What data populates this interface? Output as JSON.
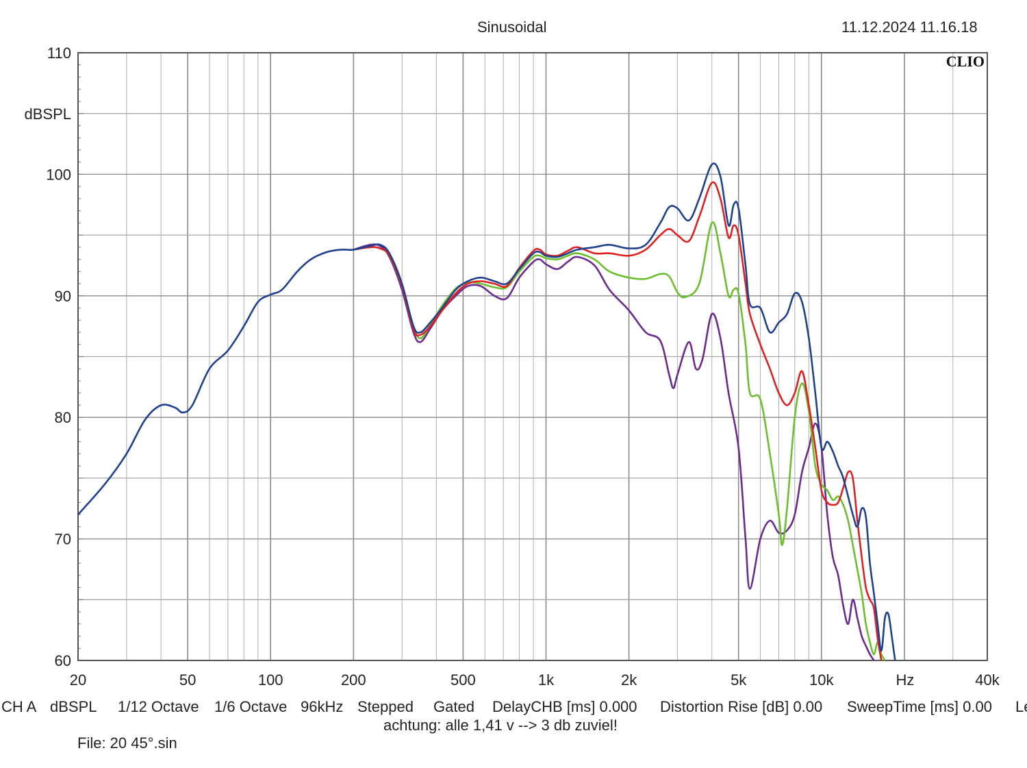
{
  "header": {
    "title": "Sinusoidal",
    "datetime": "11.12.2024 11.16.18",
    "brand": "CLIO"
  },
  "footer": {
    "settings": [
      "CH A",
      "dBSPL",
      "1/12 Octave",
      "1/6 Octave",
      "96kHz",
      "Stepped",
      "Gated",
      "DelayCHB [ms] 0.000",
      "Distortion Rise [dB] 0.00",
      "SweepTime [ms] 0.00",
      "Le"
    ],
    "note": "achtung: alle 1,41 v --> 3 db zuviel!",
    "file": "File: 20 45°.sin"
  },
  "chart_data": {
    "type": "line",
    "title": "Sinusoidal",
    "xlabel": "Hz",
    "ylabel": "dBSPL",
    "x_scale": "log",
    "xlim": [
      20,
      40000
    ],
    "ylim": [
      60,
      110
    ],
    "grid": true,
    "x_tick_labels": [
      {
        "value": 20,
        "label": "20"
      },
      {
        "value": 50,
        "label": "50"
      },
      {
        "value": 100,
        "label": "100"
      },
      {
        "value": 200,
        "label": "200"
      },
      {
        "value": 500,
        "label": "500"
      },
      {
        "value": 1000,
        "label": "1k"
      },
      {
        "value": 2000,
        "label": "2k"
      },
      {
        "value": 5000,
        "label": "5k"
      },
      {
        "value": 10000,
        "label": "10k"
      },
      {
        "value": 40000,
        "label": "40k"
      }
    ],
    "y_tick_labels": [
      {
        "value": 110,
        "label": "110"
      },
      {
        "value": 100,
        "label": "100"
      },
      {
        "value": 90,
        "label": "90"
      },
      {
        "value": 80,
        "label": "80"
      },
      {
        "value": 70,
        "label": "70"
      },
      {
        "value": 60,
        "label": "60"
      }
    ],
    "series": [
      {
        "color": "#1f3f8f",
        "points": [
          [
            20,
            72.0
          ],
          [
            25,
            74.5
          ],
          [
            30,
            77.0
          ],
          [
            35,
            79.8
          ],
          [
            40,
            81.0
          ],
          [
            45,
            80.8
          ],
          [
            48,
            80.4
          ],
          [
            52,
            81.0
          ],
          [
            60,
            84.0
          ],
          [
            70,
            85.5
          ],
          [
            80,
            87.5
          ],
          [
            90,
            89.5
          ],
          [
            100,
            90.1
          ],
          [
            110,
            90.5
          ],
          [
            125,
            92.0
          ],
          [
            140,
            93.0
          ],
          [
            160,
            93.6
          ],
          [
            180,
            93.8
          ],
          [
            200,
            93.8
          ],
          [
            230,
            94.1
          ],
          [
            250,
            94.2
          ],
          [
            270,
            93.5
          ],
          [
            300,
            91.0
          ],
          [
            330,
            87.5
          ],
          [
            350,
            87.0
          ],
          [
            380,
            87.8
          ],
          [
            420,
            89.0
          ],
          [
            470,
            90.5
          ],
          [
            520,
            91.2
          ],
          [
            580,
            91.5
          ],
          [
            650,
            91.2
          ],
          [
            720,
            91.0
          ],
          [
            800,
            92.2
          ],
          [
            900,
            93.5
          ],
          [
            950,
            93.6
          ],
          [
            1000,
            93.3
          ],
          [
            1100,
            93.2
          ],
          [
            1200,
            93.5
          ],
          [
            1300,
            93.8
          ],
          [
            1500,
            94.0
          ],
          [
            1700,
            94.2
          ],
          [
            2000,
            93.9
          ],
          [
            2300,
            94.2
          ],
          [
            2600,
            96.0
          ],
          [
            2800,
            97.3
          ],
          [
            3000,
            97.2
          ],
          [
            3300,
            96.2
          ],
          [
            3600,
            98.0
          ],
          [
            4000,
            100.8
          ],
          [
            4300,
            99.8
          ],
          [
            4600,
            95.8
          ],
          [
            4800,
            97.5
          ],
          [
            5000,
            97.2
          ],
          [
            5300,
            92.5
          ],
          [
            5500,
            89.3
          ],
          [
            6000,
            89.0
          ],
          [
            6500,
            87.0
          ],
          [
            7000,
            87.8
          ],
          [
            7500,
            88.5
          ],
          [
            8000,
            90.2
          ],
          [
            8500,
            89.5
          ],
          [
            9000,
            86.5
          ],
          [
            9500,
            82.0
          ],
          [
            10000,
            77.5
          ],
          [
            10500,
            78.0
          ],
          [
            11000,
            77.2
          ],
          [
            11500,
            76.0
          ],
          [
            12000,
            75.0
          ],
          [
            13000,
            72.0
          ],
          [
            13500,
            71.0
          ],
          [
            14000,
            72.5
          ],
          [
            14500,
            71.8
          ],
          [
            15000,
            68.0
          ],
          [
            15500,
            65.5
          ],
          [
            16000,
            63.0
          ],
          [
            16500,
            60.8
          ],
          [
            17000,
            63.5
          ],
          [
            17500,
            63.8
          ],
          [
            18000,
            62.0
          ],
          [
            18500,
            60.0
          ]
        ]
      },
      {
        "color": "#e02020",
        "points": [
          [
            200,
            93.8
          ],
          [
            230,
            94.0
          ],
          [
            250,
            93.9
          ],
          [
            270,
            93.3
          ],
          [
            300,
            90.8
          ],
          [
            330,
            87.2
          ],
          [
            350,
            86.8
          ],
          [
            380,
            87.5
          ],
          [
            420,
            88.8
          ],
          [
            470,
            90.2
          ],
          [
            520,
            91.0
          ],
          [
            580,
            91.2
          ],
          [
            650,
            91.0
          ],
          [
            720,
            90.8
          ],
          [
            800,
            92.3
          ],
          [
            900,
            93.7
          ],
          [
            950,
            93.8
          ],
          [
            1000,
            93.4
          ],
          [
            1100,
            93.3
          ],
          [
            1200,
            93.7
          ],
          [
            1300,
            94.0
          ],
          [
            1500,
            93.5
          ],
          [
            1700,
            93.5
          ],
          [
            2000,
            93.3
          ],
          [
            2300,
            93.8
          ],
          [
            2600,
            95.0
          ],
          [
            2800,
            95.5
          ],
          [
            3000,
            95.0
          ],
          [
            3300,
            94.5
          ],
          [
            3600,
            96.5
          ],
          [
            4000,
            99.3
          ],
          [
            4300,
            98.0
          ],
          [
            4600,
            94.8
          ],
          [
            4800,
            95.8
          ],
          [
            5000,
            95.0
          ],
          [
            5300,
            91.0
          ],
          [
            5500,
            88.5
          ],
          [
            6000,
            86.0
          ],
          [
            6500,
            84.0
          ],
          [
            7000,
            82.0
          ],
          [
            7500,
            81.0
          ],
          [
            8000,
            82.0
          ],
          [
            8500,
            83.8
          ],
          [
            9000,
            81.0
          ],
          [
            9500,
            77.5
          ],
          [
            10000,
            74.0
          ],
          [
            10500,
            73.0
          ],
          [
            11000,
            72.8
          ],
          [
            11500,
            73.0
          ],
          [
            12000,
            74.2
          ],
          [
            12500,
            75.5
          ],
          [
            13000,
            75.0
          ],
          [
            13500,
            71.5
          ],
          [
            14000,
            68.5
          ],
          [
            14500,
            66.0
          ],
          [
            15000,
            65.0
          ],
          [
            15500,
            64.3
          ],
          [
            16000,
            61.8
          ],
          [
            16500,
            60.0
          ]
        ]
      },
      {
        "color": "#6abf2a",
        "points": [
          [
            200,
            93.8
          ],
          [
            230,
            94.0
          ],
          [
            250,
            93.9
          ],
          [
            270,
            93.3
          ],
          [
            300,
            90.8
          ],
          [
            330,
            87.5
          ],
          [
            350,
            86.5
          ],
          [
            380,
            87.6
          ],
          [
            420,
            89.2
          ],
          [
            470,
            90.6
          ],
          [
            520,
            91.1
          ],
          [
            580,
            91.0
          ],
          [
            650,
            90.7
          ],
          [
            720,
            90.7
          ],
          [
            800,
            92.0
          ],
          [
            900,
            93.2
          ],
          [
            950,
            93.3
          ],
          [
            1000,
            93.1
          ],
          [
            1100,
            93.0
          ],
          [
            1200,
            93.3
          ],
          [
            1300,
            93.5
          ],
          [
            1500,
            93.0
          ],
          [
            1700,
            92.0
          ],
          [
            2000,
            91.5
          ],
          [
            2300,
            91.4
          ],
          [
            2600,
            91.8
          ],
          [
            2800,
            91.6
          ],
          [
            3000,
            90.3
          ],
          [
            3200,
            89.9
          ],
          [
            3600,
            91.0
          ],
          [
            4000,
            96.0
          ],
          [
            4300,
            93.5
          ],
          [
            4600,
            90.0
          ],
          [
            4800,
            90.5
          ],
          [
            5000,
            90.2
          ],
          [
            5300,
            86.0
          ],
          [
            5500,
            82.0
          ],
          [
            6000,
            81.5
          ],
          [
            6500,
            77.0
          ],
          [
            7000,
            72.0
          ],
          [
            7200,
            69.5
          ],
          [
            7500,
            72.5
          ],
          [
            8000,
            80.0
          ],
          [
            8500,
            82.8
          ],
          [
            9000,
            80.5
          ],
          [
            9500,
            76.0
          ],
          [
            10000,
            74.5
          ],
          [
            10500,
            74.0
          ],
          [
            11000,
            73.2
          ],
          [
            11500,
            73.5
          ],
          [
            12000,
            72.8
          ],
          [
            12500,
            71.5
          ],
          [
            13000,
            69.5
          ],
          [
            13500,
            67.5
          ],
          [
            14000,
            65.5
          ],
          [
            14500,
            63.0
          ],
          [
            15000,
            61.5
          ],
          [
            15500,
            60.5
          ],
          [
            16000,
            61.5
          ],
          [
            16500,
            60.5
          ],
          [
            17000,
            60.0
          ]
        ]
      },
      {
        "color": "#6a2a8f",
        "points": [
          [
            200,
            93.8
          ],
          [
            230,
            94.2
          ],
          [
            250,
            94.1
          ],
          [
            270,
            93.2
          ],
          [
            300,
            90.5
          ],
          [
            330,
            87.0
          ],
          [
            350,
            86.2
          ],
          [
            380,
            87.3
          ],
          [
            420,
            88.8
          ],
          [
            470,
            90.0
          ],
          [
            520,
            90.8
          ],
          [
            580,
            90.8
          ],
          [
            650,
            90.0
          ],
          [
            720,
            89.8
          ],
          [
            800,
            91.5
          ],
          [
            900,
            92.8
          ],
          [
            950,
            93.0
          ],
          [
            1000,
            92.6
          ],
          [
            1100,
            92.2
          ],
          [
            1200,
            92.8
          ],
          [
            1300,
            93.2
          ],
          [
            1500,
            92.5
          ],
          [
            1700,
            90.5
          ],
          [
            2000,
            88.8
          ],
          [
            2300,
            87.0
          ],
          [
            2600,
            86.3
          ],
          [
            2800,
            83.5
          ],
          [
            2900,
            82.4
          ],
          [
            3000,
            83.5
          ],
          [
            3300,
            86.2
          ],
          [
            3500,
            84.0
          ],
          [
            3700,
            84.8
          ],
          [
            4000,
            88.5
          ],
          [
            4300,
            86.5
          ],
          [
            4600,
            82.0
          ],
          [
            5000,
            77.5
          ],
          [
            5300,
            70.0
          ],
          [
            5500,
            65.9
          ],
          [
            6000,
            70.0
          ],
          [
            6500,
            71.5
          ],
          [
            7000,
            70.5
          ],
          [
            7500,
            70.7
          ],
          [
            8000,
            72.0
          ],
          [
            8500,
            75.5
          ],
          [
            9000,
            77.5
          ],
          [
            9500,
            79.5
          ],
          [
            10000,
            77.5
          ],
          [
            10500,
            72.0
          ],
          [
            11000,
            68.5
          ],
          [
            11500,
            67.0
          ],
          [
            12000,
            64.5
          ],
          [
            12500,
            63.0
          ],
          [
            13000,
            65.0
          ],
          [
            13500,
            63.5
          ],
          [
            14000,
            62.0
          ],
          [
            14500,
            61.2
          ],
          [
            15000,
            60.5
          ],
          [
            15500,
            60.0
          ]
        ]
      }
    ]
  }
}
